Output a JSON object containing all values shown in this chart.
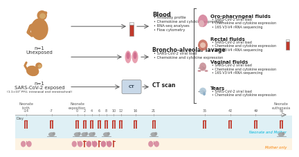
{
  "bg_color": "#ffffff",
  "upper_panel_bg": "#dff0f5",
  "lower_panel_bg": "#fdf3e3",
  "red_color": "#c0392b",
  "monkey_color": "#c8874a",
  "arrow_color": "#555555",
  "label_fontsize": 5.0,
  "small_fontsize": 3.8,
  "tick_fontsize": 4.5,
  "blood_label": "Blood",
  "blood_bullets": [
    "Antibody profile",
    "Chemokine and cytokine expression",
    "RNA-seq analyses",
    "Flow cytometry"
  ],
  "bal_label": "Broncho-alveolar lavage",
  "bal_bullets": [
    "SARS-CoV-2 viral load",
    "Chemokine and cytokine expression"
  ],
  "ct_label": "CT scan",
  "oph_label": "Oro-pharyngeal fluids",
  "oph_bullets": [
    "SARS-CoV-2 viral load",
    "Chemokine and cytokine expression",
    "16S V3-V4 rRNA sequencing"
  ],
  "rec_label": "Rectal fluids",
  "rec_bullets": [
    "SARS-CoV-2 viral load",
    "Chemokine and cytokine expression",
    "16S V3-V4 rRNA sequencing"
  ],
  "vag_label": "Vaginal fluids",
  "vag_bullets": [
    "SARS-CoV-2 viral load",
    "Chemokine and cytokine expression",
    "16S V3-V4 rRNA sequencing"
  ],
  "tear_label": "Tears",
  "tear_bullets": [
    "SARS-CoV-2 viral load",
    "Chemokine and cytokine expression"
  ],
  "unexposed_label": "n=1\nUnexposed",
  "exposed_label_1": "n=1",
  "exposed_label_2": "SARS-CoV-2 exposed",
  "exposed_label_3": "(1.1×10⁵ PFU, intranasal and intratracheal)",
  "timeline_days": [
    -14,
    -7,
    0,
    2,
    4,
    6,
    8,
    10,
    12,
    16,
    21,
    35,
    42,
    49,
    56
  ],
  "timeline_xlim": [
    -17,
    59
  ],
  "neonate_mother_days": [
    -14,
    -7,
    0,
    2,
    4,
    6,
    8,
    10,
    12,
    16,
    21,
    35,
    42,
    49,
    56
  ],
  "neonate_monkey_days": [
    -7,
    0,
    2,
    4,
    8,
    21,
    56
  ],
  "mother_lung_days": [
    -14,
    0,
    4,
    8,
    21
  ],
  "mother_bracket_days": [
    2,
    6,
    10
  ],
  "mother_bracket_lung_days": [
    4,
    8
  ],
  "neonate_and_mother_label": "Neonate and Mother",
  "mother_only_label": "Mother only",
  "legend_neonate_color": "#00b4d8",
  "legend_mother_color": "#f77f00"
}
